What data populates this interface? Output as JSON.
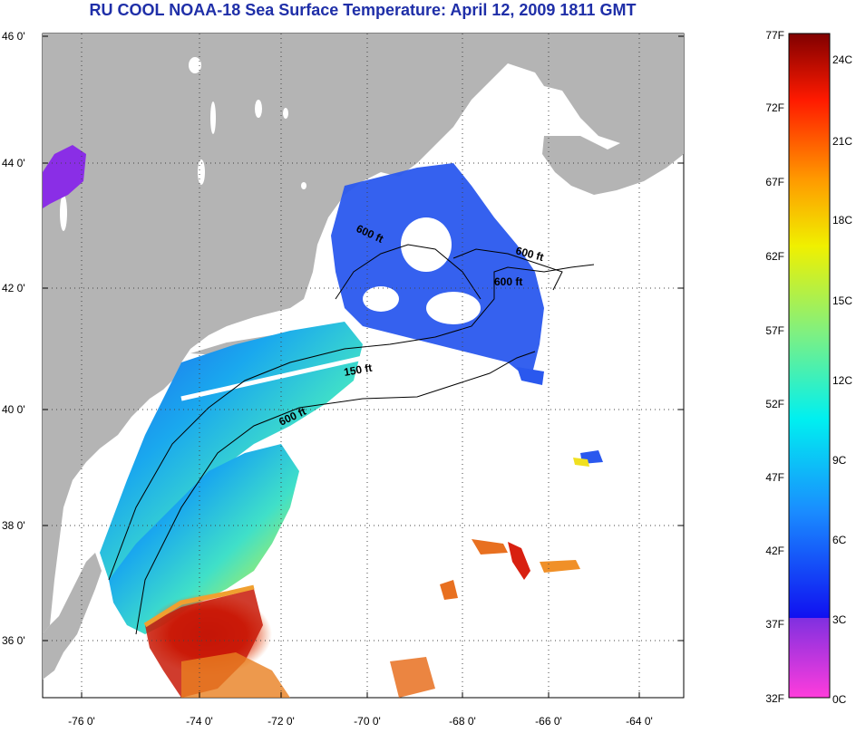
{
  "title": "RU COOL  NOAA-18  Sea Surface Temperature:  April 12, 2009 1811 GMT",
  "map": {
    "lat_labels": [
      "46 0'",
      "44 0'",
      "42 0'",
      "40 0'",
      "38 0'",
      "36 0'"
    ],
    "lon_labels": [
      "-76 0'",
      "-74 0'",
      "-72 0'",
      "-70 0'",
      "-68 0'",
      "-66 0'",
      "-64 0'"
    ],
    "contours": [
      "600 ft",
      "600 ft",
      "600 ft",
      "150 ft",
      "600 ft"
    ],
    "colors": {
      "land": "#b4b4b4",
      "ocean": "#ffffff",
      "grid": "#555555"
    }
  },
  "colorbar": {
    "f_labels": [
      "77F",
      "72F",
      "67F",
      "62F",
      "57F",
      "52F",
      "47F",
      "42F",
      "37F",
      "32F"
    ],
    "c_labels": [
      "24C",
      "21C",
      "18C",
      "15C",
      "12C",
      "9C",
      "6C",
      "3C",
      "0C"
    ]
  }
}
